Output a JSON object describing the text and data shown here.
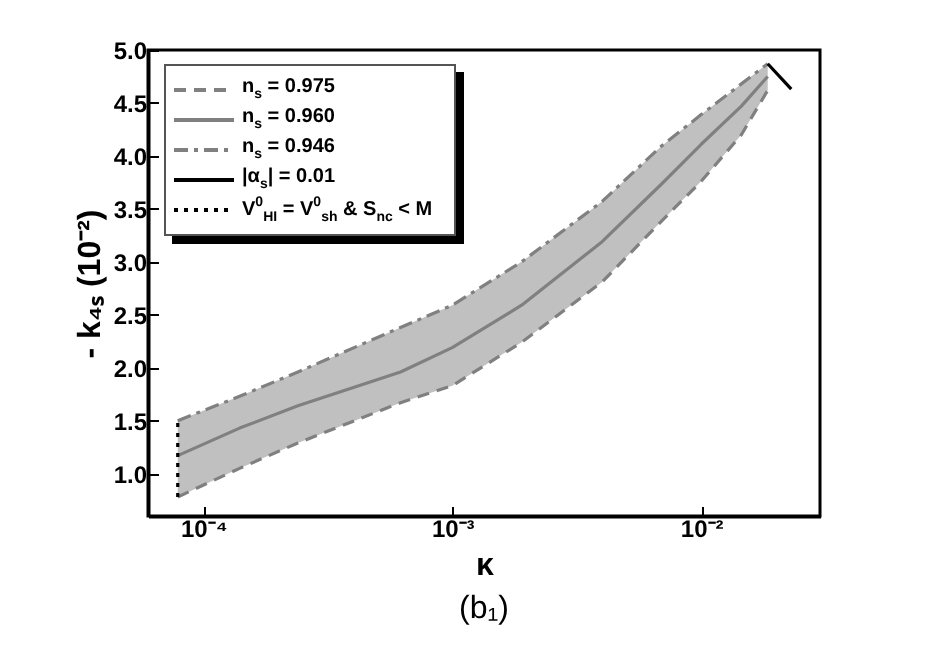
{
  "chart_data": {
    "type": "line",
    "title": "(b₁)",
    "xlabel": "κ",
    "ylabel": "- k₄ₛ (10⁻²)",
    "log": "x",
    "xlim": [
      6e-05,
      0.03
    ],
    "ylim": [
      0.6,
      5.0
    ],
    "xticks": [
      {
        "value": 0.0001,
        "label": "10⁻⁴"
      },
      {
        "value": 0.001,
        "label": "10⁻³"
      },
      {
        "value": 0.01,
        "label": "10⁻²"
      }
    ],
    "yticks": [
      {
        "value": 1,
        "label": "1.0"
      },
      1.5,
      {
        "value": 2,
        "label": "2.0"
      },
      2.5,
      {
        "value": 3,
        "label": "3.0"
      },
      3.5,
      {
        "value": 4,
        "label": "4.0"
      },
      4.5,
      {
        "value": 5,
        "label": "5.0"
      }
    ],
    "legend": "top left",
    "grid": false,
    "x": [
      7.9e-05,
      0.00014,
      0.00024,
      0.00062,
      0.001,
      0.0019,
      0.004,
      0.0069,
      0.01,
      0.0145,
      0.0185
    ],
    "series": [
      {
        "name": "n$_{s}$ = 0.975",
        "color": "#808080",
        "line_style": "dashed",
        "values": [
          0.78,
          1.05,
          1.29,
          1.67,
          1.83,
          2.24,
          2.81,
          3.38,
          3.76,
          4.2,
          4.62
        ]
      },
      {
        "name": "n$_{s}$ = 0.960",
        "color": "#808080",
        "line_style": "solid",
        "values": [
          1.17,
          1.43,
          1.64,
          1.96,
          2.19,
          2.59,
          3.19,
          3.73,
          4.11,
          4.47,
          4.75
        ],
        "lower": [
          0.78,
          1.05,
          1.29,
          1.67,
          1.83,
          2.24,
          2.81,
          3.38,
          3.76,
          4.2,
          4.62
        ],
        "upper": [
          1.5,
          1.73,
          1.96,
          2.38,
          2.59,
          3.0,
          3.57,
          4.09,
          4.39,
          4.68,
          4.87
        ]
      },
      {
        "name": "n$_{s}$ = 0.946",
        "color": "#808080",
        "line_style": "dashdot",
        "values": [
          1.5,
          1.73,
          1.96,
          2.38,
          2.59,
          3.0,
          3.57,
          4.09,
          4.39,
          4.68,
          4.87
        ]
      },
      {
        "name": "|α$_{s}$| = 0.01",
        "color": "#000000",
        "line_style": "solid",
        "x": [
          0.0185,
          0.023
        ],
        "values": [
          4.87,
          4.63
        ]
      },
      {
        "name": "V$^{0}$$_{HI}$ = V$^{0}$$_{sh}$ & S$_{nc}$ < M",
        "color": "#000000",
        "line_style": "dotted",
        "x": [
          7.9e-05,
          7.9e-05
        ],
        "values": [
          0.78,
          1.5
        ]
      }
    ]
  }
}
